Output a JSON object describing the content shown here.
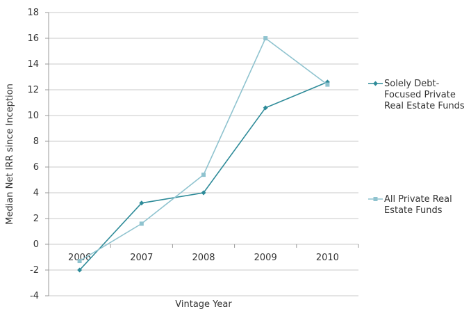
{
  "chart_data": {
    "type": "line",
    "title": "",
    "xlabel": "Vintage Year",
    "ylabel": "Median Net IRR since Inception",
    "categories": [
      "2006",
      "2007",
      "2008",
      "2009",
      "2010"
    ],
    "ylim": [
      -4,
      18
    ],
    "yticks": [
      -4,
      -2,
      0,
      2,
      4,
      6,
      8,
      10,
      12,
      14,
      16,
      18
    ],
    "grid": true,
    "legend_position": "right",
    "series": [
      {
        "name": "Solely Debt-Focused Private Real Estate Funds",
        "legend_lines": [
          "Solely Debt-",
          "Focused Private",
          "Real Estate Funds"
        ],
        "values": [
          -2.0,
          3.2,
          4.0,
          10.6,
          12.6
        ],
        "color": "#2e8b99",
        "marker": "diamond"
      },
      {
        "name": "All Private Real Estate Funds",
        "legend_lines": [
          "All Private Real",
          "Estate Funds"
        ],
        "values": [
          -1.3,
          1.6,
          5.4,
          16.0,
          12.4
        ],
        "color": "#8fc3cf",
        "marker": "square"
      }
    ]
  }
}
